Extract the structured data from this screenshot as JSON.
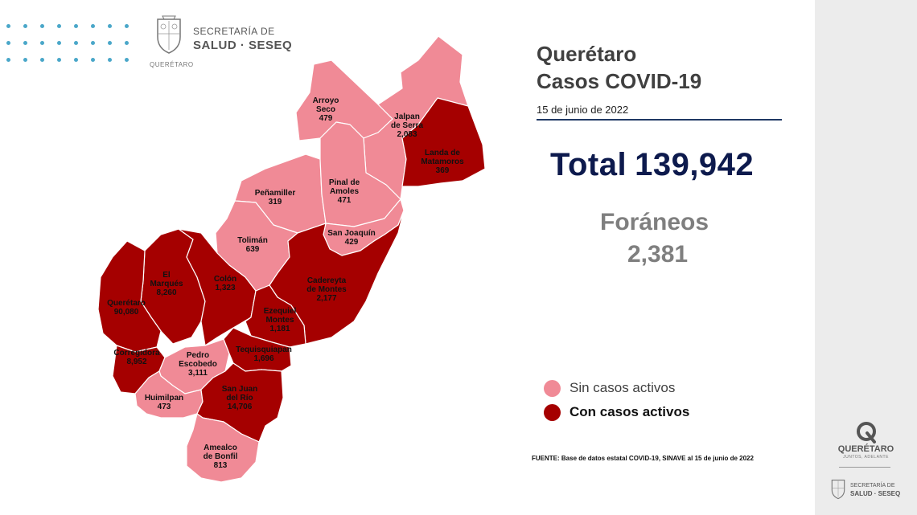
{
  "header": {
    "logo_line1": "SECRETARÍA DE",
    "logo_line2": "SALUD · SESEQ",
    "logo_line3": "QUERÉTARO"
  },
  "title": {
    "line1": "Querétaro",
    "line2": "Casos COVID-19",
    "date": "15 de junio de 2022"
  },
  "total": {
    "label": "Total",
    "value": "139,942"
  },
  "foraneos": {
    "label": "Foráneos",
    "value": "2,381"
  },
  "legend": {
    "inactive": {
      "label": "Sin casos activos",
      "color": "#f08a96"
    },
    "active": {
      "label": "Con casos activos",
      "color": "#a50000"
    }
  },
  "source": "FUENTE: Base de datos estatal COVID-19, SINAVE al 15 de junio de 2022",
  "sidebar": {
    "brand": "QUERÉTARO",
    "tagline": "JUNTOS, ADELANTE",
    "seseq_line1": "SECRETARÍA DE",
    "seseq_line2": "SALUD · SESEQ"
  },
  "municipalities": [
    {
      "id": "arroyo",
      "name_lines": [
        "Arroyo",
        "Seco"
      ],
      "cases": "479",
      "status": "inactive"
    },
    {
      "id": "jalpan",
      "name_lines": [
        "Jalpan",
        "de Serra"
      ],
      "cases": "2,083",
      "status": "inactive"
    },
    {
      "id": "landa",
      "name_lines": [
        "Landa de",
        "Matamoros"
      ],
      "cases": "369",
      "status": "active"
    },
    {
      "id": "penamiller",
      "name_lines": [
        "Peñamiller"
      ],
      "cases": "319",
      "status": "inactive"
    },
    {
      "id": "pinal",
      "name_lines": [
        "Pinal de",
        "Amoles"
      ],
      "cases": "471",
      "status": "inactive"
    },
    {
      "id": "sanjoaquin",
      "name_lines": [
        "San Joaquín"
      ],
      "cases": "429",
      "status": "inactive"
    },
    {
      "id": "toliman",
      "name_lines": [
        "Tolimán"
      ],
      "cases": "639",
      "status": "inactive"
    },
    {
      "id": "cadereyta",
      "name_lines": [
        "Cadereyta",
        "de Montes"
      ],
      "cases": "2,177",
      "status": "active"
    },
    {
      "id": "elmarques",
      "name_lines": [
        "El",
        "Marqués"
      ],
      "cases": "8,260",
      "status": "active"
    },
    {
      "id": "colon",
      "name_lines": [
        "Colón"
      ],
      "cases": "1,323",
      "status": "active"
    },
    {
      "id": "queretaro",
      "name_lines": [
        "Querétaro"
      ],
      "cases": "90,080",
      "status": "active"
    },
    {
      "id": "ezequiel",
      "name_lines": [
        "Ezequiel",
        "Montes"
      ],
      "cases": "1,181",
      "status": "active"
    },
    {
      "id": "corregidora",
      "name_lines": [
        "Corregidora"
      ],
      "cases": "8,952",
      "status": "active"
    },
    {
      "id": "pedro",
      "name_lines": [
        "Pedro",
        "Escobedo"
      ],
      "cases": "3,111",
      "status": "inactive"
    },
    {
      "id": "tequis",
      "name_lines": [
        "Tequisquiapan"
      ],
      "cases": "1,696",
      "status": "active"
    },
    {
      "id": "huimilpan",
      "name_lines": [
        "Huimilpan"
      ],
      "cases": "473",
      "status": "inactive"
    },
    {
      "id": "sanjuan",
      "name_lines": [
        "San Juan",
        "del Río"
      ],
      "cases": "14,706",
      "status": "active"
    },
    {
      "id": "amealco",
      "name_lines": [
        "Amealco",
        "de Bonfil"
      ],
      "cases": "813",
      "status": "inactive"
    }
  ]
}
